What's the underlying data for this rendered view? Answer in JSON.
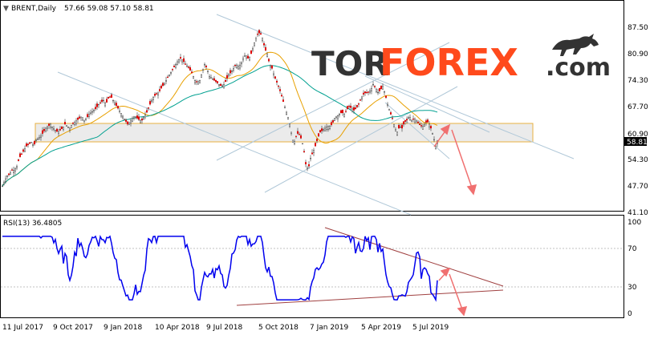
{
  "header": {
    "symbol_arrow": "▼",
    "symbol": "BRENT,Daily",
    "ohlc": "57.66 59.08 57.10 58.81"
  },
  "watermark": {
    "part1": "TOR",
    "part2": "FOREX",
    "part3": ".com",
    "color_dark": "#333333",
    "color_accent": "#ff4a1c",
    "logo_icon": "bull-icon"
  },
  "price_panel": {
    "y_ticks": [
      "87.50",
      "80.90",
      "74.30",
      "67.70",
      "60.90",
      "54.30",
      "47.70",
      "41.10"
    ],
    "current_price": "58.81"
  },
  "rsi_panel": {
    "label": "RSI(13) 36.4805",
    "y_ticks": [
      "100",
      "70",
      "30",
      "0"
    ]
  },
  "x_ticks": [
    "11 Jul 2017",
    "9 Oct 2017",
    "9 Jan 2018",
    "10 Apr 2018",
    "9 Jul 2018",
    "5 Oct 2018",
    "7 Jan 2019",
    "5 Apr 2019",
    "5 Jul 2019"
  ],
  "colors": {
    "candle": "#e00000",
    "candle_wick": "#333333",
    "ma_fast": "#e8a000",
    "ma_slow": "#00a090",
    "rsi": "#0000ee",
    "trend_channel": "#b0c8d8",
    "rsi_trend": "#a04040",
    "zone_fill": "#e8e8e8",
    "zone_border": "#e8b040",
    "arrow": "#f07070"
  },
  "chart_data": [
    {
      "type": "candlestick",
      "title": "BRENT,Daily",
      "x": [
        "11 Jul 2017",
        "9 Oct 2017",
        "9 Jan 2018",
        "10 Apr 2018",
        "9 Jul 2018",
        "5 Oct 2018",
        "7 Jan 2019",
        "5 Apr 2019",
        "5 Jul 2019"
      ],
      "ylim": [
        41.1,
        87.5
      ],
      "close_path": [
        [
          0,
          47.5
        ],
        [
          3,
          49.0
        ],
        [
          6,
          50.0
        ],
        [
          9,
          50.5
        ],
        [
          12,
          51.5
        ],
        [
          15,
          51.5
        ],
        [
          18,
          52.5
        ],
        [
          21,
          54.5
        ],
        [
          24,
          55.5
        ],
        [
          27,
          56.5
        ],
        [
          30,
          57.5
        ],
        [
          33,
          58.0
        ],
        [
          36,
          58.5
        ],
        [
          39,
          57.5
        ],
        [
          42,
          59.0
        ],
        [
          45,
          59.5
        ],
        [
          48,
          60.0
        ],
        [
          51,
          61.0
        ],
        [
          54,
          62.0
        ],
        [
          57,
          62.5
        ],
        [
          60,
          63.0
        ],
        [
          63,
          62.0
        ],
        [
          66,
          61.5
        ],
        [
          69,
          61.0
        ],
        [
          72,
          61.5
        ],
        [
          75,
          62.0
        ],
        [
          78,
          63.0
        ],
        [
          81,
          62.5
        ],
        [
          84,
          62.0
        ],
        [
          87,
          63.0
        ],
        [
          90,
          63.5
        ],
        [
          93,
          64.0
        ],
        [
          96,
          64.5
        ],
        [
          99,
          65.0
        ],
        [
          102,
          64.0
        ],
        [
          105,
          64.5
        ],
        [
          108,
          65.5
        ],
        [
          111,
          66.0
        ],
        [
          114,
          66.5
        ],
        [
          117,
          67.0
        ],
        [
          120,
          68.0
        ],
        [
          123,
          68.5
        ],
        [
          126,
          69.0
        ],
        [
          129,
          68.0
        ],
        [
          132,
          69.5
        ],
        [
          135,
          70.0
        ],
        [
          138,
          69.0
        ],
        [
          141,
          68.0
        ],
        [
          144,
          67.0
        ],
        [
          147,
          66.0
        ],
        [
          150,
          65.0
        ],
        [
          153,
          64.0
        ],
        [
          156,
          63.0
        ],
        [
          159,
          63.5
        ],
        [
          162,
          64.5
        ],
        [
          165,
          65.0
        ],
        [
          168,
          64.5
        ],
        [
          171,
          64.0
        ],
        [
          174,
          64.0
        ],
        [
          177,
          65.0
        ],
        [
          180,
          66.0
        ],
        [
          183,
          67.5
        ],
        [
          186,
          69.0
        ],
        [
          189,
          70.0
        ],
        [
          192,
          70.5
        ],
        [
          195,
          71.0
        ],
        [
          198,
          72.0
        ],
        [
          201,
          73.0
        ],
        [
          204,
          74.0
        ],
        [
          207,
          75.0
        ],
        [
          210,
          76.0
        ],
        [
          213,
          77.0
        ],
        [
          216,
          78.0
        ],
        [
          219,
          79.0
        ],
        [
          222,
          79.5
        ],
        [
          225,
          79.0
        ],
        [
          228,
          78.0
        ],
        [
          231,
          77.5
        ],
        [
          234,
          76.5
        ],
        [
          237,
          75.5
        ],
        [
          240,
          74.0
        ],
        [
          243,
          73.5
        ],
        [
          246,
          74.0
        ],
        [
          249,
          76.0
        ],
        [
          252,
          78.0
        ],
        [
          255,
          77.0
        ],
        [
          258,
          75.0
        ],
        [
          261,
          74.5
        ],
        [
          264,
          74.0
        ],
        [
          267,
          73.5
        ],
        [
          270,
          73.0
        ],
        [
          273,
          72.5
        ],
        [
          276,
          73.0
        ],
        [
          279,
          74.0
        ],
        [
          282,
          75.5
        ],
        [
          285,
          76.0
        ],
        [
          288,
          77.0
        ],
        [
          291,
          78.0
        ],
        [
          294,
          77.5
        ],
        [
          297,
          78.0
        ],
        [
          300,
          79.5
        ],
        [
          303,
          80.5
        ],
        [
          306,
          79.5
        ],
        [
          309,
          80.0
        ],
        [
          312,
          82.0
        ],
        [
          315,
          84.0
        ],
        [
          318,
          85.5
        ],
        [
          321,
          86.0
        ],
        [
          324,
          84.5
        ],
        [
          327,
          82.0
        ],
        [
          330,
          80.5
        ],
        [
          333,
          78.0
        ],
        [
          336,
          77.0
        ],
        [
          339,
          75.0
        ],
        [
          342,
          73.5
        ],
        [
          345,
          72.0
        ],
        [
          348,
          70.0
        ],
        [
          351,
          68.0
        ],
        [
          354,
          66.0
        ],
        [
          357,
          64.0
        ],
        [
          360,
          61.0
        ],
        [
          363,
          58.0
        ],
        [
          366,
          60.0
        ],
        [
          369,
          61.0
        ],
        [
          372,
          59.5
        ],
        [
          375,
          57.5
        ],
        [
          378,
          53.0
        ],
        [
          381,
          51.5
        ],
        [
          384,
          54.5
        ],
        [
          387,
          56.0
        ],
        [
          390,
          57.5
        ],
        [
          393,
          59.5
        ],
        [
          396,
          61.0
        ],
        [
          399,
          61.5
        ],
        [
          402,
          62.0
        ],
        [
          405,
          62.5
        ],
        [
          408,
          62.5
        ],
        [
          411,
          63.0
        ],
        [
          414,
          64.5
        ],
        [
          417,
          65.0
        ],
        [
          420,
          65.5
        ],
        [
          423,
          66.0
        ],
        [
          426,
          65.5
        ],
        [
          429,
          66.5
        ],
        [
          432,
          67.5
        ],
        [
          435,
          67.0
        ],
        [
          438,
          66.5
        ],
        [
          441,
          67.0
        ],
        [
          444,
          68.0
        ],
        [
          447,
          69.5
        ],
        [
          450,
          70.5
        ],
        [
          453,
          71.0
        ],
        [
          456,
          71.0
        ],
        [
          459,
          71.5
        ],
        [
          462,
          73.0
        ],
        [
          465,
          72.0
        ],
        [
          468,
          71.0
        ],
        [
          471,
          71.5
        ],
        [
          474,
          72.5
        ],
        [
          477,
          70.5
        ],
        [
          480,
          68.0
        ],
        [
          483,
          66.0
        ],
        [
          486,
          64.5
        ],
        [
          489,
          62.0
        ],
        [
          492,
          61.0
        ],
        [
          495,
          62.5
        ],
        [
          498,
          62.0
        ],
        [
          501,
          63.5
        ],
        [
          504,
          64.0
        ],
        [
          507,
          65.0
        ],
        [
          510,
          64.0
        ],
        [
          513,
          64.5
        ],
        [
          516,
          64.0
        ],
        [
          519,
          63.0
        ],
        [
          522,
          62.5
        ],
        [
          525,
          62.5
        ],
        [
          528,
          63.5
        ],
        [
          531,
          63.5
        ],
        [
          534,
          62.0
        ],
        [
          537,
          60.0
        ],
        [
          540,
          57.5
        ],
        [
          542,
          58.8
        ]
      ]
    },
    {
      "type": "line",
      "title": "RSI(13) 36.4805",
      "x": [
        "11 Jul 2017",
        "9 Oct 2017",
        "9 Jan 2018",
        "10 Apr 2018",
        "9 Jul 2018",
        "5 Oct 2018",
        "7 Jan 2019",
        "5 Apr 2019",
        "5 Jul 2019"
      ],
      "ylim": [
        0,
        100
      ],
      "y_ticks": [
        100,
        70,
        30,
        0
      ],
      "last_value": 36.4805
    }
  ]
}
